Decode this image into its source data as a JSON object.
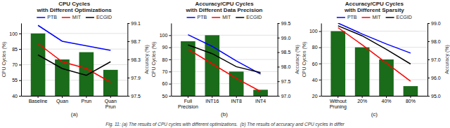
{
  "chart_data": [
    {
      "type": "bar",
      "title": "CPU Cycles\nwith Different Optimizations",
      "subtitle": "(a)",
      "annotations": [
        "Fig. 11: (a) The results of CPU cycles with different optimizations.  (b) The results of accuracy and CPU cycles in differ"
      ],
      "categories": [
        "Baseline",
        "Quan",
        "Prun",
        "Quan\nPrun"
      ],
      "ylabel": "CPU Cycles (%)",
      "y2label": "Accuracy (%)",
      "ylim": [
        40,
        110
      ],
      "yticks": [
        40,
        55,
        70,
        85,
        100
      ],
      "y2lim": [
        97.5,
        99.1
      ],
      "y2ticks": [
        97.5,
        97.9,
        98.3,
        98.7,
        99.1
      ],
      "grid": true,
      "legend": "top",
      "series": [
        {
          "type": "bar",
          "color": "#1a6b1a",
          "values": [
            100,
            75,
            82,
            65
          ]
        },
        {
          "name": "PTB",
          "type": "line",
          "axis": "y2",
          "color": "blue",
          "values": [
            99.05,
            98.7,
            98.6,
            98.5
          ]
        },
        {
          "name": "MIT",
          "type": "line",
          "axis": "y2",
          "color": "red",
          "values": [
            98.65,
            98.25,
            98.1,
            97.8
          ]
        },
        {
          "name": "ECGID",
          "type": "line",
          "axis": "y2",
          "color": "black",
          "values": [
            98.4,
            98.1,
            97.95,
            98.25
          ]
        }
      ]
    },
    {
      "type": "bar",
      "title": "Accuracy/CPU Cycles\nwith Different Data Precision",
      "subtitle": "(b)",
      "categories": [
        "Full\nPrecision",
        "INT16",
        "INT8",
        "INT4"
      ],
      "ylabel": "CPU Cycles (%)",
      "y2label": "Accuracy (%)",
      "ylim": [
        50,
        110
      ],
      "yticks": [
        50,
        60,
        70,
        80,
        90,
        100
      ],
      "y2lim": [
        97.0,
        99.5
      ],
      "y2ticks": [
        {
          "value": 97.0,
          "label": "97.0"
        },
        97.5,
        {
          "value": 98.0,
          "label": "98.0"
        },
        98.5,
        {
          "value": 99.0,
          "label": "99.0"
        },
        99.5
      ],
      "grid": true,
      "legend": "top",
      "series": [
        {
          "type": "bar",
          "color": "#1a6b1a",
          "values": [
            95,
            100,
            70,
            55
          ]
        },
        {
          "name": "PTB",
          "type": "line",
          "axis": "y2",
          "color": "blue",
          "values": [
            99.1,
            98.7,
            98.2,
            97.75
          ]
        },
        {
          "name": "MIT",
          "type": "line",
          "axis": "y2",
          "color": "red",
          "values": [
            98.6,
            98.1,
            97.6,
            97.15
          ]
        },
        {
          "name": "ECGID",
          "type": "line",
          "axis": "y2",
          "color": "black",
          "values": [
            98.75,
            98.45,
            98.0,
            97.8
          ]
        }
      ]
    },
    {
      "type": "bar",
      "title": "Accuracy/CPU Cycles\nwith Different Sparsity",
      "subtitle": "(c)",
      "categories": [
        "Without\nPruning",
        "20%",
        "40%",
        "80%"
      ],
      "ylabel": "CPU Cycles (%)",
      "y2label": "Accuracy (%)",
      "ylim": [
        20,
        110
      ],
      "yticks": [
        20,
        40,
        60,
        80,
        100
      ],
      "y2lim": [
        95.0,
        99.0
      ],
      "y2ticks": [
        {
          "value": 95.0,
          "label": "95.0"
        },
        {
          "value": 96.0,
          "label": "96.0"
        },
        {
          "value": 97.0,
          "label": "97.0"
        },
        {
          "value": 98.0,
          "label": "98.0"
        },
        {
          "value": 99.0,
          "label": "99.0"
        }
      ],
      "grid": true,
      "legend": "top",
      "series": [
        {
          "type": "bar",
          "color": "#1a6b1a",
          "values": [
            100,
            80,
            65,
            32
          ]
        },
        {
          "name": "PTB",
          "type": "line",
          "axis": "y2",
          "color": "blue",
          "values": [
            99.0,
            98.4,
            97.85,
            97.35
          ]
        },
        {
          "name": "MIT",
          "type": "line",
          "axis": "y2",
          "color": "red",
          "values": [
            98.75,
            97.8,
            96.8,
            95.8
          ]
        },
        {
          "name": "ECGID",
          "type": "line",
          "axis": "y2",
          "color": "black",
          "values": [
            98.85,
            98.3,
            97.55,
            96.75
          ]
        }
      ]
    }
  ]
}
